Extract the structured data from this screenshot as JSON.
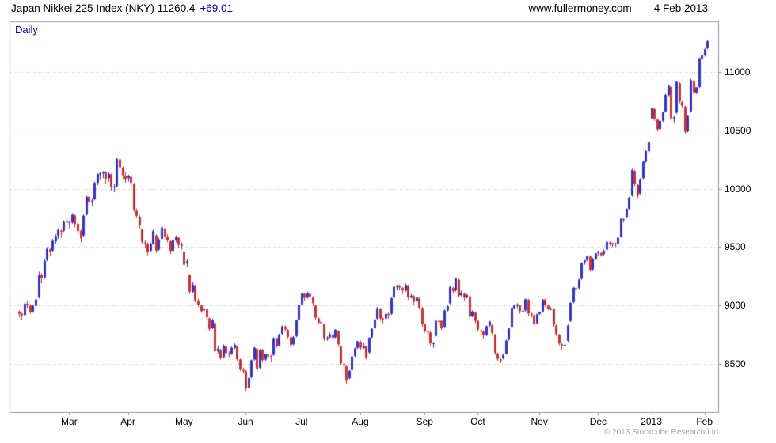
{
  "header": {
    "title": "Japan Nikkei 225 Index (NKY) 11260.4",
    "change": "+69.01",
    "website": "www.fullermoney.com",
    "date": "4 Feb 2013"
  },
  "chart_label": "Daily",
  "footer": {
    "copyright": "© 2013 Stockcube Research Ltd"
  },
  "colors": {
    "up": "#3333cc",
    "down": "#cc3030",
    "grid": "#c0c0c0",
    "frame": "#999999",
    "accent_blue": "#0000bb",
    "text": "#000000",
    "copyright": "#a6a6a6"
  },
  "chart_data": {
    "type": "candlestick",
    "title": "Japan Nikkei 225 Index (NKY)",
    "interval": "Daily",
    "last_price": 11260.4,
    "change": 69.01,
    "ylim": [
      8090,
      11430
    ],
    "grid_levels": [
      8500,
      9000,
      9500,
      10000,
      10500,
      11000
    ],
    "grid": "dotted-horizontal",
    "legend_position": "none",
    "month_ticks": [
      {
        "label": "Mar",
        "index": 18
      },
      {
        "label": "Apr",
        "index": 39
      },
      {
        "label": "May",
        "index": 59
      },
      {
        "label": "Jun",
        "index": 81
      },
      {
        "label": "Jul",
        "index": 101
      },
      {
        "label": "Aug",
        "index": 122
      },
      {
        "label": "Sep",
        "index": 145
      },
      {
        "label": "Oct",
        "index": 164
      },
      {
        "label": "Nov",
        "index": 186
      },
      {
        "label": "Dec",
        "index": 207
      },
      {
        "label": "2013",
        "index": 226
      },
      {
        "label": "Feb",
        "index": 245
      }
    ],
    "candles": [
      [
        8950,
        8960,
        8900,
        8930
      ],
      [
        8930,
        8940,
        8880,
        8917
      ],
      [
        8920,
        9030,
        8910,
        9015
      ],
      [
        9015,
        9040,
        8980,
        9003
      ],
      [
        9000,
        9010,
        8930,
        8947
      ],
      [
        8950,
        9010,
        8940,
        8999
      ],
      [
        9000,
        9070,
        8990,
        9052
      ],
      [
        9070,
        9290,
        9060,
        9260
      ],
      [
        9260,
        9280,
        9190,
        9238
      ],
      [
        9240,
        9400,
        9230,
        9384
      ],
      [
        9390,
        9500,
        9380,
        9485
      ],
      [
        9480,
        9490,
        9420,
        9463
      ],
      [
        9470,
        9570,
        9460,
        9554
      ],
      [
        9550,
        9610,
        9530,
        9595
      ],
      [
        9600,
        9660,
        9570,
        9647
      ],
      [
        9640,
        9650,
        9580,
        9633
      ],
      [
        9640,
        9730,
        9630,
        9722
      ],
      [
        9720,
        9750,
        9690,
        9723
      ],
      [
        9720,
        9730,
        9660,
        9707
      ],
      [
        9710,
        9790,
        9700,
        9777
      ],
      [
        9770,
        9780,
        9670,
        9698
      ],
      [
        9700,
        9710,
        9610,
        9637
      ],
      [
        9640,
        9650,
        9540,
        9576
      ],
      [
        9600,
        9780,
        9590,
        9768
      ],
      [
        9780,
        9940,
        9770,
        9930
      ],
      [
        9930,
        9940,
        9860,
        9890
      ],
      [
        9890,
        9920,
        9850,
        9899
      ],
      [
        9910,
        10060,
        9900,
        10050
      ],
      [
        10050,
        10130,
        10030,
        10123
      ],
      [
        10120,
        10140,
        10080,
        10130
      ],
      [
        10130,
        10150,
        10090,
        10141
      ],
      [
        10140,
        10150,
        10040,
        10086
      ],
      [
        10090,
        10140,
        10060,
        10127
      ],
      [
        10120,
        10130,
        9980,
        10011
      ],
      [
        10010,
        10040,
        9970,
        10018
      ],
      [
        10020,
        10260,
        10010,
        10255
      ],
      [
        10250,
        10260,
        10150,
        10182
      ],
      [
        10180,
        10190,
        10080,
        10114
      ],
      [
        10110,
        10140,
        10050,
        10084
      ],
      [
        10090,
        10120,
        10060,
        10109
      ],
      [
        10100,
        10110,
        10020,
        10050
      ],
      [
        10040,
        10050,
        9800,
        9819
      ],
      [
        9810,
        9830,
        9750,
        9768
      ],
      [
        9760,
        9770,
        9660,
        9688
      ],
      [
        9650,
        9660,
        9530,
        9546
      ],
      [
        9540,
        9560,
        9490,
        9538
      ],
      [
        9530,
        9540,
        9430,
        9458
      ],
      [
        9470,
        9540,
        9460,
        9524
      ],
      [
        9530,
        9650,
        9520,
        9637
      ],
      [
        9600,
        9610,
        9450,
        9470
      ],
      [
        9480,
        9580,
        9470,
        9565
      ],
      [
        9570,
        9680,
        9560,
        9667
      ],
      [
        9660,
        9670,
        9570,
        9589
      ],
      [
        9590,
        9610,
        9540,
        9561
      ],
      [
        9550,
        9560,
        9440,
        9468
      ],
      [
        9470,
        9570,
        9460,
        9561
      ],
      [
        9560,
        9600,
        9540,
        9586
      ],
      [
        9580,
        9590,
        9490,
        9520
      ],
      [
        9520,
        9540,
        9480,
        9521
      ],
      [
        9460,
        9470,
        9340,
        9350
      ],
      [
        9360,
        9400,
        9330,
        9380
      ],
      [
        9260,
        9270,
        9100,
        9119
      ],
      [
        9120,
        9200,
        9110,
        9181
      ],
      [
        9170,
        9180,
        9030,
        9045
      ],
      [
        9040,
        9060,
        8990,
        9009
      ],
      [
        9000,
        9010,
        8940,
        8953
      ],
      [
        8960,
        9000,
        8940,
        8973
      ],
      [
        8970,
        8980,
        8880,
        8901
      ],
      [
        8890,
        8900,
        8780,
        8801
      ],
      [
        8810,
        8890,
        8800,
        8876
      ],
      [
        8850,
        8860,
        8600,
        8611
      ],
      [
        8610,
        8660,
        8590,
        8633
      ],
      [
        8620,
        8630,
        8540,
        8556
      ],
      [
        8560,
        8670,
        8550,
        8657
      ],
      [
        8650,
        8660,
        8580,
        8595
      ],
      [
        8590,
        8610,
        8560,
        8580
      ],
      [
        8590,
        8650,
        8580,
        8640
      ],
      [
        8640,
        8680,
        8630,
        8665
      ],
      [
        8650,
        8660,
        8530,
        8543
      ],
      [
        8540,
        8550,
        8440,
        8455
      ],
      [
        8450,
        8470,
        8420,
        8440
      ],
      [
        8440,
        8450,
        8270,
        8295
      ],
      [
        8300,
        8390,
        8290,
        8382
      ],
      [
        8390,
        8540,
        8380,
        8533
      ],
      [
        8540,
        8650,
        8530,
        8639
      ],
      [
        8630,
        8640,
        8440,
        8459
      ],
      [
        8470,
        8630,
        8460,
        8624
      ],
      [
        8620,
        8630,
        8520,
        8536
      ],
      [
        8540,
        8590,
        8530,
        8587
      ],
      [
        8580,
        8590,
        8540,
        8568
      ],
      [
        8570,
        8580,
        8520,
        8569
      ],
      [
        8580,
        8730,
        8570,
        8721
      ],
      [
        8720,
        8730,
        8640,
        8655
      ],
      [
        8660,
        8760,
        8650,
        8752
      ],
      [
        8760,
        8830,
        8750,
        8824
      ],
      [
        8820,
        8830,
        8780,
        8798
      ],
      [
        8790,
        8800,
        8720,
        8734
      ],
      [
        8730,
        8740,
        8640,
        8663
      ],
      [
        8670,
        8740,
        8660,
        8730
      ],
      [
        8740,
        8880,
        8730,
        8874
      ],
      [
        8880,
        9010,
        8870,
        9007
      ],
      [
        9010,
        9110,
        9000,
        9104
      ],
      [
        9100,
        9110,
        9040,
        9066
      ],
      [
        9070,
        9120,
        9060,
        9104
      ],
      [
        9100,
        9110,
        9050,
        9079
      ],
      [
        9070,
        9080,
        9000,
        9021
      ],
      [
        9000,
        9010,
        8880,
        8897
      ],
      [
        8890,
        8900,
        8840,
        8857
      ],
      [
        8860,
        8880,
        8840,
        8851
      ],
      [
        8840,
        8850,
        8700,
        8720
      ],
      [
        8720,
        8740,
        8700,
        8724
      ],
      [
        8730,
        8770,
        8720,
        8755
      ],
      [
        8750,
        8760,
        8700,
        8726
      ],
      [
        8730,
        8800,
        8720,
        8795
      ],
      [
        8780,
        8790,
        8650,
        8670
      ],
      [
        8650,
        8660,
        8490,
        8508
      ],
      [
        8500,
        8510,
        8450,
        8488
      ],
      [
        8480,
        8490,
        8330,
        8366
      ],
      [
        8380,
        8450,
        8370,
        8443
      ],
      [
        8450,
        8570,
        8440,
        8566
      ],
      [
        8570,
        8640,
        8560,
        8635
      ],
      [
        8640,
        8700,
        8630,
        8695
      ],
      [
        8690,
        8700,
        8620,
        8641
      ],
      [
        8640,
        8680,
        8630,
        8653
      ],
      [
        8650,
        8660,
        8540,
        8555
      ],
      [
        8600,
        8730,
        8590,
        8726
      ],
      [
        8730,
        8810,
        8720,
        8803
      ],
      [
        8810,
        8890,
        8800,
        8881
      ],
      [
        8890,
        8990,
        8880,
        8978
      ],
      [
        8970,
        8980,
        8870,
        8891
      ],
      [
        8890,
        8900,
        8850,
        8885
      ],
      [
        8890,
        8940,
        8880,
        8929
      ],
      [
        8930,
        8940,
        8890,
        8925
      ],
      [
        8930,
        9070,
        8920,
        9063
      ],
      [
        9070,
        9170,
        9060,
        9162
      ],
      [
        9160,
        9180,
        9130,
        9171
      ],
      [
        9170,
        9180,
        9130,
        9156
      ],
      [
        9150,
        9160,
        9100,
        9131
      ],
      [
        9130,
        9190,
        9120,
        9178
      ],
      [
        9170,
        9180,
        9050,
        9070
      ],
      [
        9070,
        9100,
        9060,
        9085
      ],
      [
        9080,
        9090,
        9010,
        9033
      ],
      [
        9040,
        9080,
        9030,
        9069
      ],
      [
        9060,
        9070,
        8970,
        8983
      ],
      [
        8980,
        8990,
        8820,
        8840
      ],
      [
        8840,
        8850,
        8770,
        8783
      ],
      [
        8780,
        8790,
        8750,
        8775
      ],
      [
        8770,
        8780,
        8660,
        8679
      ],
      [
        8680,
        8690,
        8640,
        8680
      ],
      [
        8740,
        8880,
        8730,
        8871
      ],
      [
        8870,
        8880,
        8840,
        8869
      ],
      [
        8870,
        8880,
        8790,
        8807
      ],
      [
        8820,
        8970,
        8810,
        8959
      ],
      [
        8960,
        9010,
        8950,
        8995
      ],
      [
        9020,
        9170,
        9010,
        9159
      ],
      [
        9150,
        9160,
        9100,
        9123
      ],
      [
        9130,
        9240,
        9120,
        9232
      ],
      [
        9220,
        9230,
        9070,
        9086
      ],
      [
        9090,
        9130,
        9080,
        9110
      ],
      [
        9100,
        9110,
        9040,
        9069
      ],
      [
        9070,
        9100,
        9060,
        9091
      ],
      [
        9080,
        9090,
        8890,
        8906
      ],
      [
        8910,
        8960,
        8900,
        8949
      ],
      [
        8940,
        8950,
        8850,
        8870
      ],
      [
        8870,
        8880,
        8780,
        8796
      ],
      [
        8790,
        8800,
        8750,
        8786
      ],
      [
        8780,
        8790,
        8720,
        8746
      ],
      [
        8750,
        8830,
        8740,
        8824
      ],
      [
        8830,
        8870,
        8820,
        8863
      ],
      [
        8830,
        8840,
        8750,
        8769
      ],
      [
        8750,
        8760,
        8580,
        8596
      ],
      [
        8590,
        8600,
        8530,
        8546
      ],
      [
        8540,
        8550,
        8510,
        8534
      ],
      [
        8550,
        8590,
        8540,
        8577
      ],
      [
        8590,
        8710,
        8580,
        8701
      ],
      [
        8710,
        8810,
        8700,
        8806
      ],
      [
        8820,
        8990,
        8810,
        8982
      ],
      [
        8980,
        9010,
        8970,
        9003
      ],
      [
        9000,
        9020,
        8980,
        9010
      ],
      [
        9000,
        9010,
        8930,
        8954
      ],
      [
        8950,
        8970,
        8940,
        8955
      ],
      [
        8960,
        9060,
        8950,
        9055
      ],
      [
        9050,
        9060,
        8910,
        8933
      ],
      [
        8930,
        8940,
        8900,
        8929
      ],
      [
        8920,
        8930,
        8820,
        8841
      ],
      [
        8850,
        8930,
        8840,
        8928
      ],
      [
        8930,
        8950,
        8920,
        8946
      ],
      [
        8950,
        9060,
        8940,
        9051
      ],
      [
        9050,
        9060,
        8990,
        9007
      ],
      [
        9000,
        9010,
        8960,
        8975
      ],
      [
        8970,
        8990,
        8960,
        8972
      ],
      [
        8970,
        8980,
        8820,
        8837
      ],
      [
        8830,
        8840,
        8740,
        8757
      ],
      [
        8750,
        8760,
        8660,
        8676
      ],
      [
        8670,
        8680,
        8620,
        8661
      ],
      [
        8660,
        8690,
        8650,
        8665
      ],
      [
        8700,
        8840,
        8690,
        8830
      ],
      [
        8870,
        9030,
        8860,
        9024
      ],
      [
        9030,
        9160,
        9020,
        9153
      ],
      [
        9150,
        9160,
        9120,
        9142
      ],
      [
        9150,
        9230,
        9140,
        9223
      ],
      [
        9230,
        9370,
        9220,
        9367
      ],
      [
        9370,
        9390,
        9350,
        9388
      ],
      [
        9390,
        9430,
        9380,
        9423
      ],
      [
        9420,
        9430,
        9290,
        9308
      ],
      [
        9310,
        9410,
        9300,
        9400
      ],
      [
        9400,
        9450,
        9390,
        9446
      ],
      [
        9450,
        9470,
        9430,
        9458
      ],
      [
        9450,
        9460,
        9420,
        9432
      ],
      [
        9440,
        9480,
        9430,
        9469
      ],
      [
        9480,
        9550,
        9470,
        9545
      ],
      [
        9540,
        9550,
        9510,
        9527
      ],
      [
        9530,
        9540,
        9500,
        9533
      ],
      [
        9530,
        9540,
        9500,
        9525
      ],
      [
        9530,
        9590,
        9520,
        9581
      ],
      [
        9590,
        9750,
        9580,
        9742
      ],
      [
        9740,
        9750,
        9710,
        9738
      ],
      [
        9760,
        9830,
        9750,
        9828
      ],
      [
        9830,
        9930,
        9820,
        9923
      ],
      [
        9940,
        10170,
        9930,
        10160
      ],
      [
        10150,
        10160,
        10020,
        10039
      ],
      [
        10030,
        10040,
        9920,
        9940
      ],
      [
        9960,
        10090,
        9950,
        10080
      ],
      [
        10090,
        10240,
        10080,
        10230
      ],
      [
        10230,
        10330,
        10220,
        10322
      ],
      [
        10320,
        10400,
        10310,
        10395
      ],
      [
        10600,
        10700,
        10590,
        10688
      ],
      [
        10680,
        10690,
        10580,
        10599
      ],
      [
        10590,
        10600,
        10490,
        10508
      ],
      [
        10510,
        10590,
        10500,
        10579
      ],
      [
        10580,
        10660,
        10570,
        10653
      ],
      [
        10660,
        10810,
        10650,
        10801
      ],
      [
        10800,
        10890,
        10790,
        10879
      ],
      [
        10870,
        10880,
        10580,
        10600
      ],
      [
        10600,
        10620,
        10560,
        10610
      ],
      [
        10650,
        10920,
        10640,
        10913
      ],
      [
        10900,
        10910,
        10730,
        10747
      ],
      [
        10740,
        10750,
        10690,
        10709
      ],
      [
        10700,
        10710,
        10470,
        10486
      ],
      [
        10490,
        10630,
        10480,
        10620
      ],
      [
        10660,
        10940,
        10650,
        10927
      ],
      [
        10920,
        10930,
        10800,
        10824
      ],
      [
        10820,
        10870,
        10810,
        10866
      ],
      [
        10870,
        11120,
        10860,
        11114
      ],
      [
        11110,
        11150,
        11100,
        11139
      ],
      [
        11140,
        11200,
        11130,
        11191
      ],
      [
        11200,
        11270,
        11190,
        11260
      ]
    ]
  }
}
